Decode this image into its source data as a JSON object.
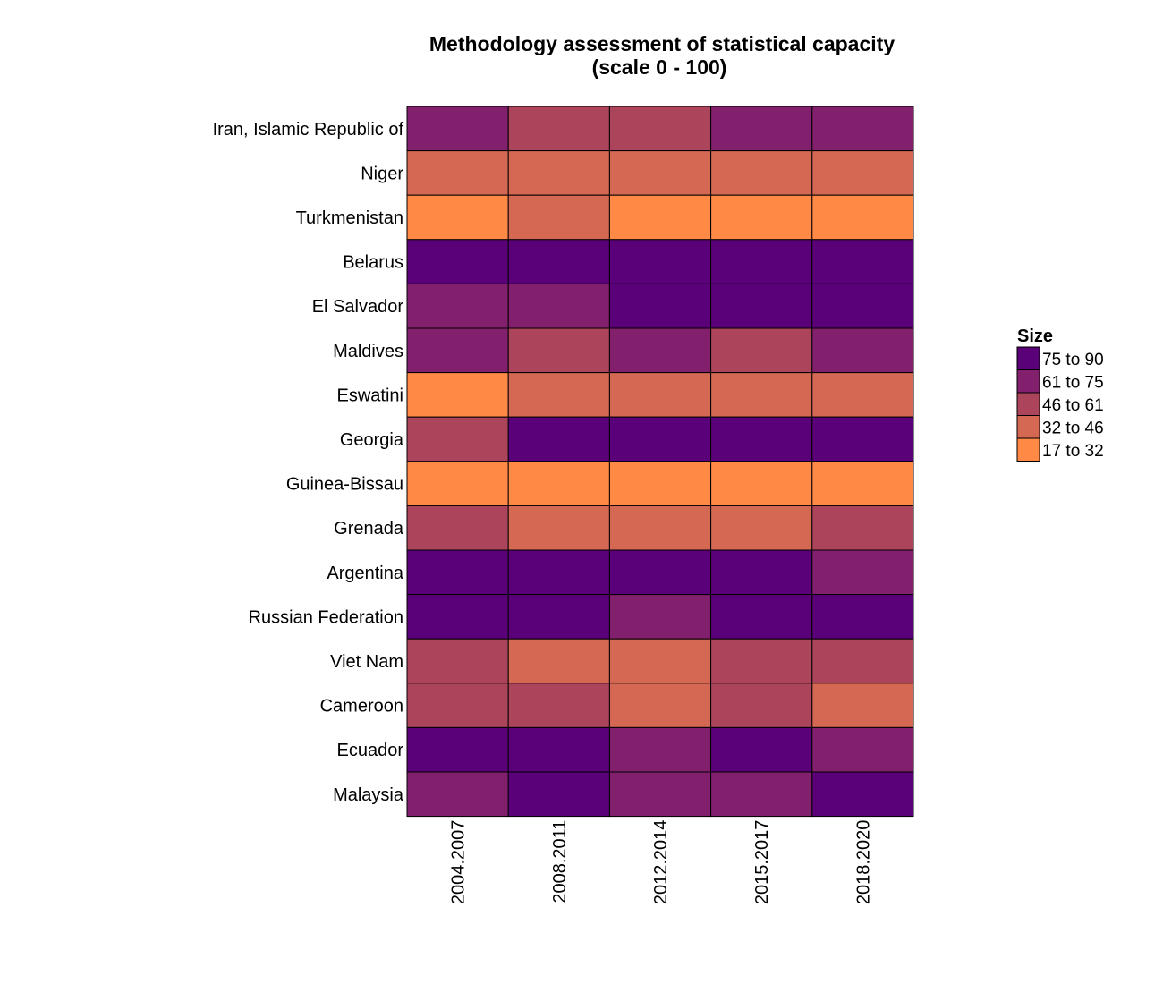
{
  "chart_data": {
    "type": "heatmap",
    "title": "Methodology assessment of statistical capacity",
    "subtitle": "(scale 0 - 100)",
    "xlabel": "",
    "ylabel": "",
    "x_categories": [
      "2004.2007",
      "2008.2011",
      "2012.2014",
      "2015.2017",
      "2018.2020"
    ],
    "y_categories": [
      "Iran, Islamic Republic of",
      "Niger",
      "Turkmenistan",
      "Belarus",
      "El Salvador",
      "Maldives",
      "Eswatini",
      "Georgia",
      "Guinea-Bissau",
      "Grenada",
      "Argentina",
      "Russian Federation",
      "Viet Nam",
      "Cameroon",
      "Ecuador",
      "Malaysia"
    ],
    "bins": [
      "75 to 90",
      "61 to 75",
      "46 to 61",
      "32 to 46",
      "17 to 32"
    ],
    "bin_colors": {
      "75 to 90": "#5A0079",
      "61 to 75": "#82206D",
      "46 to 61": "#AC455B",
      "32 to 46": "#D46852",
      "17 to 32": "#FF8945"
    },
    "cells": [
      [
        "61 to 75",
        "46 to 61",
        "46 to 61",
        "61 to 75",
        "61 to 75"
      ],
      [
        "32 to 46",
        "32 to 46",
        "32 to 46",
        "32 to 46",
        "32 to 46"
      ],
      [
        "17 to 32",
        "32 to 46",
        "17 to 32",
        "17 to 32",
        "17 to 32"
      ],
      [
        "75 to 90",
        "75 to 90",
        "75 to 90",
        "75 to 90",
        "75 to 90"
      ],
      [
        "61 to 75",
        "61 to 75",
        "75 to 90",
        "75 to 90",
        "75 to 90"
      ],
      [
        "61 to 75",
        "46 to 61",
        "61 to 75",
        "46 to 61",
        "61 to 75"
      ],
      [
        "17 to 32",
        "32 to 46",
        "32 to 46",
        "32 to 46",
        "32 to 46"
      ],
      [
        "46 to 61",
        "75 to 90",
        "75 to 90",
        "75 to 90",
        "75 to 90"
      ],
      [
        "17 to 32",
        "17 to 32",
        "17 to 32",
        "17 to 32",
        "17 to 32"
      ],
      [
        "46 to 61",
        "32 to 46",
        "32 to 46",
        "32 to 46",
        "46 to 61"
      ],
      [
        "75 to 90",
        "75 to 90",
        "75 to 90",
        "75 to 90",
        "61 to 75"
      ],
      [
        "75 to 90",
        "75 to 90",
        "61 to 75",
        "75 to 90",
        "75 to 90"
      ],
      [
        "46 to 61",
        "32 to 46",
        "32 to 46",
        "46 to 61",
        "46 to 61"
      ],
      [
        "46 to 61",
        "46 to 61",
        "32 to 46",
        "46 to 61",
        "32 to 46"
      ],
      [
        "75 to 90",
        "75 to 90",
        "61 to 75",
        "75 to 90",
        "61 to 75"
      ],
      [
        "61 to 75",
        "75 to 90",
        "61 to 75",
        "61 to 75",
        "75 to 90"
      ]
    ],
    "legend": {
      "title": "Size",
      "position": "right",
      "entries": [
        "75 to 90",
        "61 to 75",
        "46 to 61",
        "32 to 46",
        "17 to 32"
      ]
    },
    "grid": false,
    "cell_border_color": "#000000"
  }
}
